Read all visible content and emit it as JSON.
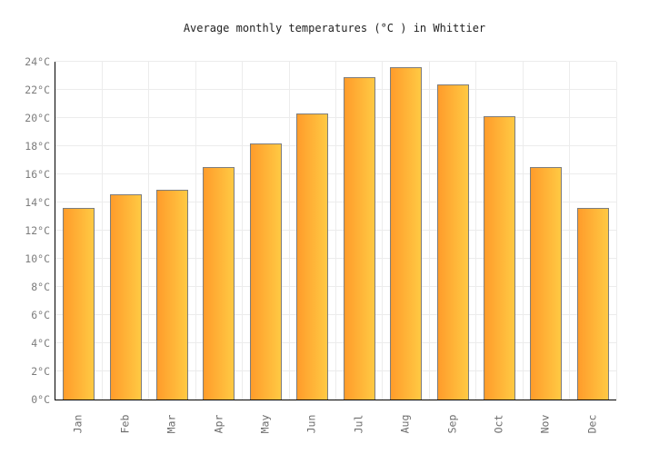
{
  "chart_data": {
    "type": "bar",
    "title": "Average monthly temperatures (°C ) in Whittier",
    "categories": [
      "Jan",
      "Feb",
      "Mar",
      "Apr",
      "May",
      "Jun",
      "Jul",
      "Aug",
      "Sep",
      "Oct",
      "Nov",
      "Dec"
    ],
    "values": [
      13.6,
      14.6,
      14.9,
      16.5,
      18.2,
      20.3,
      22.9,
      23.6,
      22.4,
      20.1,
      16.5,
      13.6
    ],
    "unit": "°C",
    "xlabel": "",
    "ylabel": "",
    "ylim": [
      0,
      24
    ],
    "ytick_step": 2,
    "ytick_labels": [
      "0°C",
      "2°C",
      "4°C",
      "6°C",
      "8°C",
      "10°C",
      "12°C",
      "14°C",
      "16°C",
      "18°C",
      "20°C",
      "22°C",
      "24°C"
    ],
    "legend": "none",
    "grid": "on",
    "colors": {
      "bar_gradient_left": "#FF9C2B",
      "bar_gradient_right": "#FFC943",
      "bar_border": "#7D7D7D",
      "gridline": "#ECECEC",
      "axis": "#000000",
      "tick_text": "#7C7C7C",
      "title_text": "#222222",
      "background": "#FFFFFF"
    }
  }
}
